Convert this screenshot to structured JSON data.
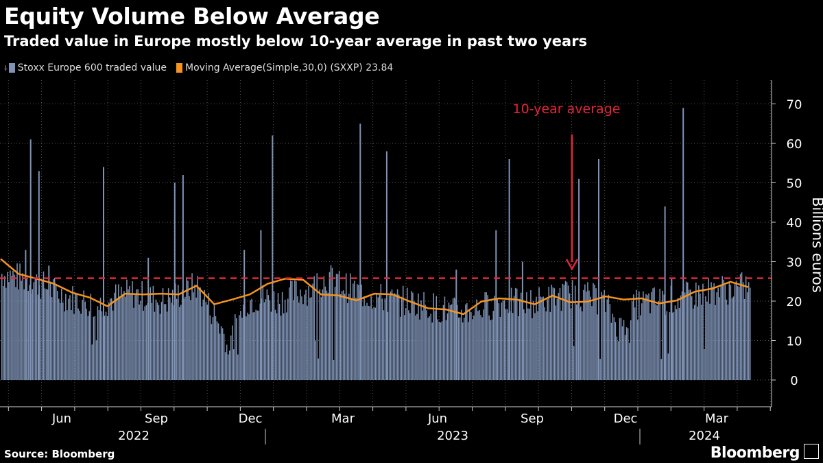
{
  "title": "Equity Volume Below Average",
  "subtitle": "Traded value in Europe mostly below 10-year average in past two years",
  "legend": {
    "series1": "Stoxx Europe 600 traded value",
    "series2": "Moving Average(Simple,30,0) (SXXP) 23.84"
  },
  "footer": {
    "source": "Source: Bloomberg",
    "brand": "Bloomberg"
  },
  "colors": {
    "bars": "#7f93b6",
    "ma": "#f7931e",
    "ref": "#e8243c",
    "grid": "#5a5a5a"
  },
  "chart_data": {
    "type": "bar",
    "title": "Equity Volume Below Average",
    "ylabel": "Billions euros",
    "ylim": [
      -7,
      77
    ],
    "yticks": [
      0,
      10,
      20,
      30,
      40,
      50,
      60,
      70
    ],
    "x_months": [
      "Jun",
      "Sep",
      "Dec",
      "Mar",
      "Jun",
      "Sep",
      "Dec",
      "Mar"
    ],
    "x_years": [
      "2022",
      "2023",
      "2024"
    ],
    "reference_line": {
      "label": "10-year average",
      "value": 25.8
    },
    "series": [
      {
        "name": "Stoxx Europe 600 traded value",
        "kind": "bar",
        "baseline_levels": [
          27,
          26,
          25,
          23,
          21,
          20,
          19,
          21,
          22,
          21,
          20,
          22,
          24,
          17,
          9,
          20,
          21,
          20,
          22,
          23,
          26,
          24,
          22,
          21,
          20,
          20,
          19,
          18,
          17,
          18,
          19,
          20,
          19,
          20,
          21,
          22,
          21,
          20,
          13,
          19,
          20,
          20,
          21,
          22,
          23,
          23,
          24
        ],
        "spikes": [
          {
            "month_pos": 0.5,
            "value": 33
          },
          {
            "month_pos": 0.65,
            "value": 61
          },
          {
            "month_pos": 0.9,
            "value": 53
          },
          {
            "month_pos": 1.2,
            "value": 29
          },
          {
            "month_pos": 2.85,
            "value": 54
          },
          {
            "month_pos": 4.2,
            "value": 31
          },
          {
            "month_pos": 5.0,
            "value": 50
          },
          {
            "month_pos": 5.25,
            "value": 52
          },
          {
            "month_pos": 7.1,
            "value": 33
          },
          {
            "month_pos": 7.6,
            "value": 38
          },
          {
            "month_pos": 7.95,
            "value": 62
          },
          {
            "month_pos": 10.6,
            "value": 65
          },
          {
            "month_pos": 11.4,
            "value": 58
          },
          {
            "month_pos": 13.5,
            "value": 28
          },
          {
            "month_pos": 14.7,
            "value": 38
          },
          {
            "month_pos": 15.1,
            "value": 56
          },
          {
            "month_pos": 15.5,
            "value": 30
          },
          {
            "month_pos": 17.2,
            "value": 51
          },
          {
            "month_pos": 17.8,
            "value": 56
          },
          {
            "month_pos": 19.8,
            "value": 44
          },
          {
            "month_pos": 20.0,
            "value": 26
          },
          {
            "month_pos": 20.35,
            "value": 69
          }
        ]
      },
      {
        "name": "Moving Average(Simple,30,0) (SXXP)",
        "kind": "line",
        "last_value": 23.84,
        "values_by_month": [
          31,
          26.5,
          26,
          24,
          22.5,
          20.5,
          19,
          21.5,
          22,
          21.5,
          22,
          23.5,
          19.5,
          20,
          22,
          24,
          26,
          25,
          22,
          21,
          20.5,
          21.5,
          22,
          19.5,
          18.5,
          17.5,
          17,
          19.5,
          21,
          20,
          19.5,
          21,
          20,
          19.5,
          21.5,
          20,
          21,
          19,
          20.5,
          22,
          23.5,
          24.5,
          23.84
        ]
      }
    ]
  }
}
